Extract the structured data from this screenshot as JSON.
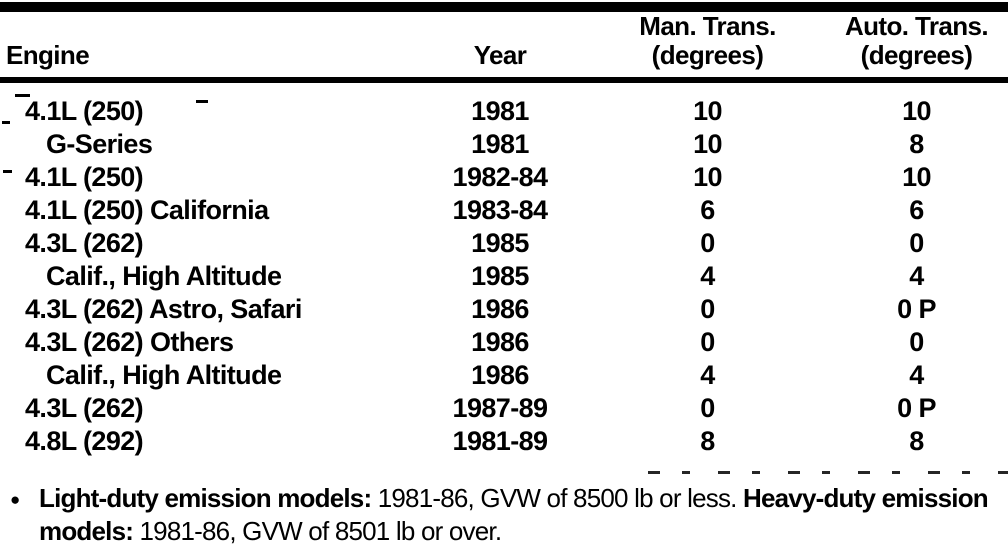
{
  "colors": {
    "ink": "#000000",
    "paper": "#ffffff"
  },
  "table": {
    "headers": {
      "engine": "Engine",
      "year": "Year",
      "man_trans": {
        "line1": "Man. Trans.",
        "line2": "(degrees)"
      },
      "auto_trans": {
        "line1": "Auto. Trans.",
        "line2": "(degrees)"
      }
    },
    "rows": [
      {
        "engine": "4.1L (250)",
        "indent": false,
        "year": "1981",
        "man": "10",
        "auto": "10"
      },
      {
        "engine": "G-Series",
        "indent": true,
        "year": "1981",
        "man": "10",
        "auto": "8"
      },
      {
        "engine": "4.1L (250)",
        "indent": false,
        "year": "1982-84",
        "man": "10",
        "auto": "10"
      },
      {
        "engine": "4.1L (250) California",
        "indent": false,
        "year": "1983-84",
        "man": "6",
        "auto": "6"
      },
      {
        "engine": "4.3L (262)",
        "indent": false,
        "year": "1985",
        "man": "0",
        "auto": "0"
      },
      {
        "engine": "Calif., High Altitude",
        "indent": true,
        "year": "1985",
        "man": "4",
        "auto": "4"
      },
      {
        "engine": "4.3L (262) Astro, Safari",
        "indent": false,
        "year": "1986",
        "man": "0",
        "auto": "0 P"
      },
      {
        "engine": "4.3L (262) Others",
        "indent": false,
        "year": "1986",
        "man": "0",
        "auto": "0"
      },
      {
        "engine": "Calif., High Altitude",
        "indent": true,
        "year": "1986",
        "man": "4",
        "auto": "4"
      },
      {
        "engine": "4.3L (262)",
        "indent": false,
        "year": "1987-89",
        "man": "0",
        "auto": "0 P"
      },
      {
        "engine": "4.8L (292)",
        "indent": false,
        "year": "1981-89",
        "man": "8",
        "auto": "8"
      }
    ]
  },
  "footnote": {
    "bullet": "●",
    "segments": [
      {
        "text": "Light-duty emission models:",
        "bold": true
      },
      {
        "text": " 1981-86, GVW of 8500 lb or less. ",
        "bold": false
      },
      {
        "text": "Heavy-duty emission",
        "bold": true
      },
      {
        "text": "models:",
        "bold": true
      },
      {
        "text": " 1981-86, GVW of 8501 lb or over.",
        "bold": false
      }
    ]
  }
}
